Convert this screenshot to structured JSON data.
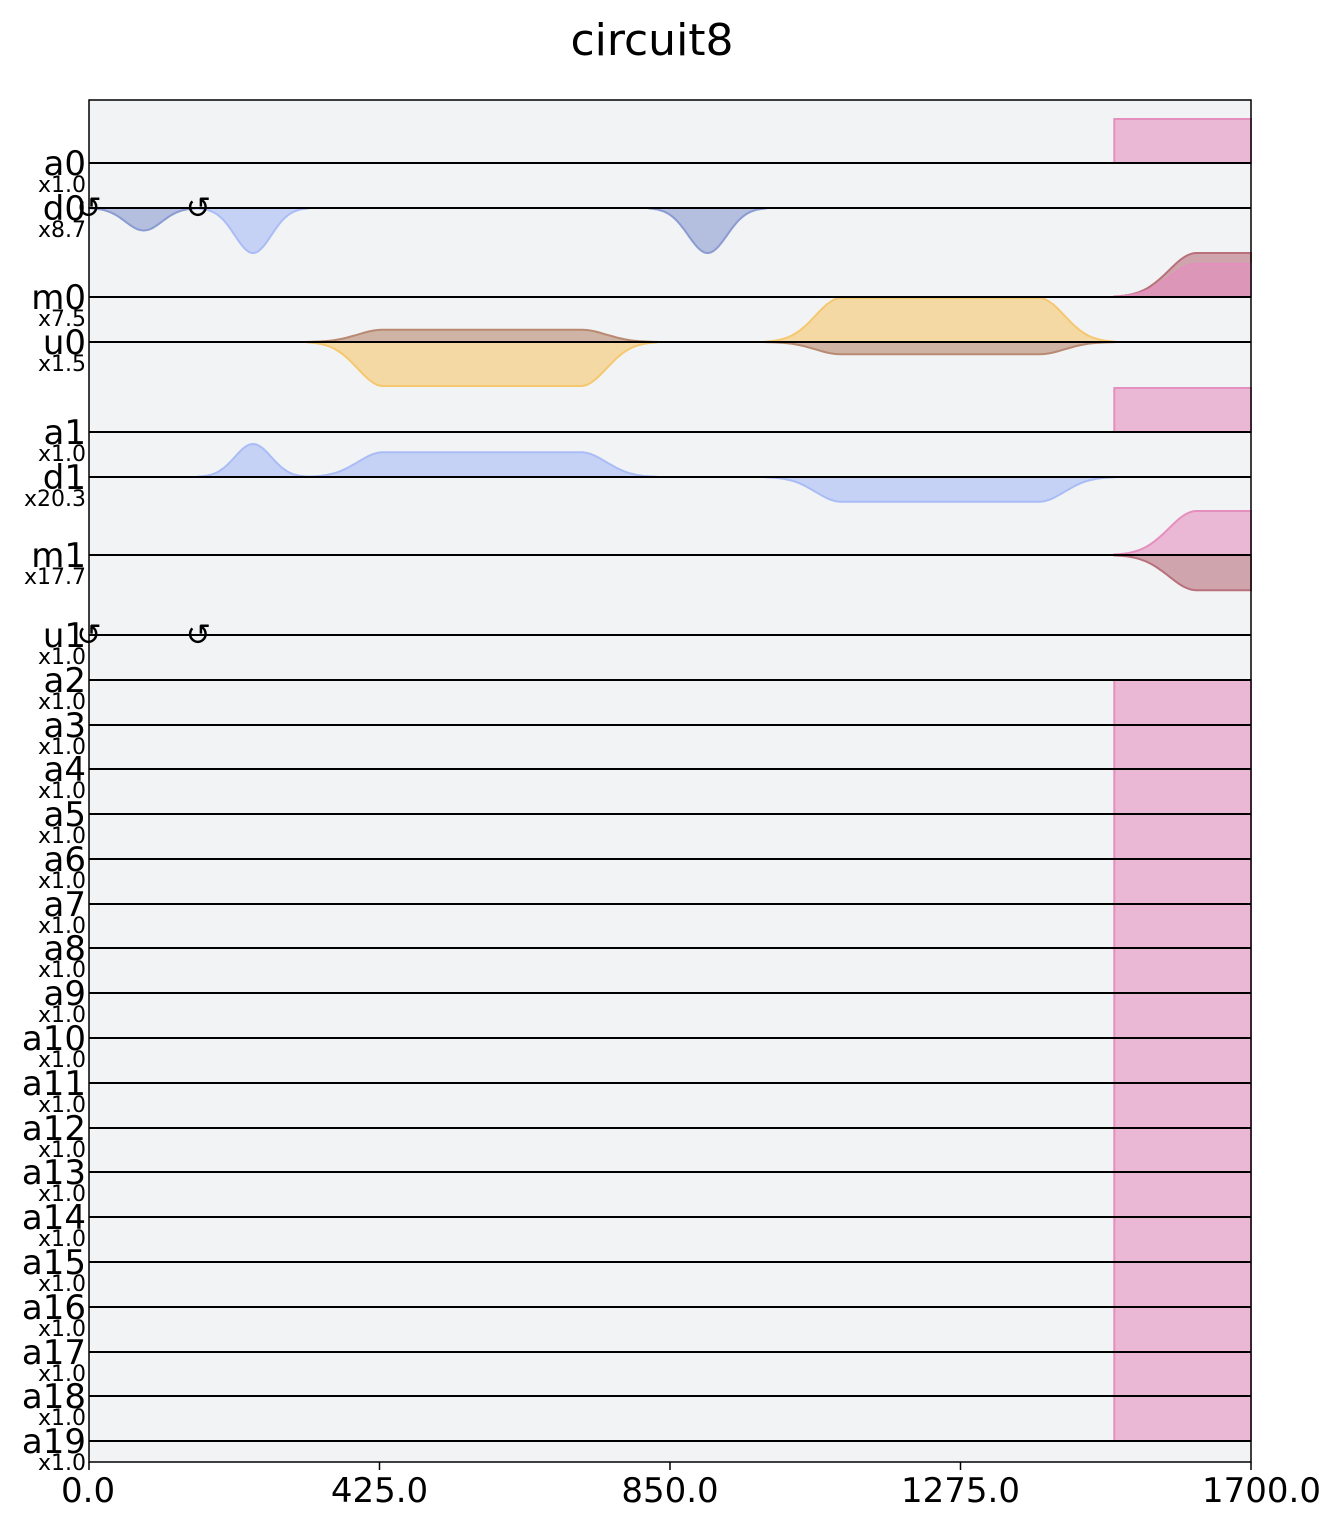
{
  "chart_data": {
    "type": "area",
    "title": "circuit8",
    "xlabel": "",
    "ylabel": "",
    "xlim": [
      0,
      1700
    ],
    "x_ticks": [
      "0.0",
      "425.0",
      "850.0",
      "1275.0",
      "1700.0"
    ],
    "x_tick_values": [
      0,
      425,
      850,
      1275,
      1700
    ],
    "grid": false,
    "legend": "none",
    "colors": {
      "background": "#f2f3f5",
      "drive_real": "#8a9bd1",
      "drive_imag": "#a9bcf5",
      "control_real": "#b88a72",
      "control_imag": "#f5c870",
      "measure_real": "#b8707c",
      "measure_imag": "#e58fbf",
      "acquire": "#e58fbf"
    },
    "channels": [
      {
        "name": "a0",
        "scale": "x1.0",
        "kind": "acquire"
      },
      {
        "name": "d0",
        "scale": "x8.7",
        "kind": "drive",
        "frame_change_icons": [
          "↺",
          "↺"
        ],
        "frame_change_times": [
          0,
          160
        ]
      },
      {
        "name": "m0",
        "scale": "x7.5",
        "kind": "measure"
      },
      {
        "name": "u0",
        "scale": "x1.5",
        "kind": "control"
      },
      {
        "name": "a1",
        "scale": "x1.0",
        "kind": "acquire"
      },
      {
        "name": "d1",
        "scale": "x20.3",
        "kind": "drive"
      },
      {
        "name": "m1",
        "scale": "x17.7",
        "kind": "measure"
      },
      {
        "name": "u1",
        "scale": "x1.0",
        "kind": "control",
        "frame_change_icons": [
          "↺",
          "↺"
        ],
        "frame_change_times": [
          0,
          160
        ]
      },
      {
        "name": "a2",
        "scale": "x1.0",
        "kind": "acquire"
      },
      {
        "name": "a3",
        "scale": "x1.0",
        "kind": "acquire"
      },
      {
        "name": "a4",
        "scale": "x1.0",
        "kind": "acquire"
      },
      {
        "name": "a5",
        "scale": "x1.0",
        "kind": "acquire"
      },
      {
        "name": "a6",
        "scale": "x1.0",
        "kind": "acquire"
      },
      {
        "name": "a7",
        "scale": "x1.0",
        "kind": "acquire"
      },
      {
        "name": "a8",
        "scale": "x1.0",
        "kind": "acquire"
      },
      {
        "name": "a9",
        "scale": "x1.0",
        "kind": "acquire"
      },
      {
        "name": "a10",
        "scale": "x1.0",
        "kind": "acquire"
      },
      {
        "name": "a11",
        "scale": "x1.0",
        "kind": "acquire"
      },
      {
        "name": "a12",
        "scale": "x1.0",
        "kind": "acquire"
      },
      {
        "name": "a13",
        "scale": "x1.0",
        "kind": "acquire"
      },
      {
        "name": "a14",
        "scale": "x1.0",
        "kind": "acquire"
      },
      {
        "name": "a15",
        "scale": "x1.0",
        "kind": "acquire"
      },
      {
        "name": "a16",
        "scale": "x1.0",
        "kind": "acquire"
      },
      {
        "name": "a17",
        "scale": "x1.0",
        "kind": "acquire"
      },
      {
        "name": "a18",
        "scale": "x1.0",
        "kind": "acquire"
      },
      {
        "name": "a19",
        "scale": "x1.0",
        "kind": "acquire"
      }
    ],
    "acquire_window": {
      "start": 1500,
      "end": 1700
    },
    "pulses": [
      {
        "channel": "d0",
        "component": "real",
        "shape": "gaussian",
        "start": 0,
        "end": 160,
        "amplitude": -0.5
      },
      {
        "channel": "d0",
        "component": "imag",
        "shape": "gaussian",
        "start": 160,
        "end": 320,
        "amplitude": -1.0
      },
      {
        "channel": "d0",
        "component": "real",
        "shape": "gaussian",
        "start": 820,
        "end": 990,
        "amplitude": -1.0
      },
      {
        "channel": "u0",
        "component": "real",
        "shape": "gaussian_square",
        "start": 320,
        "end": 830,
        "flat_start": 430,
        "flat_end": 720,
        "amplitude": 0.28
      },
      {
        "channel": "u0",
        "component": "imag",
        "shape": "gaussian_square",
        "start": 320,
        "end": 830,
        "flat_start": 430,
        "flat_end": 720,
        "amplitude": -1.0
      },
      {
        "channel": "u0",
        "component": "imag",
        "shape": "gaussian_square",
        "start": 990,
        "end": 1500,
        "flat_start": 1100,
        "flat_end": 1390,
        "amplitude": 1.0
      },
      {
        "channel": "u0",
        "component": "real",
        "shape": "gaussian_square",
        "start": 990,
        "end": 1500,
        "flat_start": 1100,
        "flat_end": 1390,
        "amplitude": -0.28
      },
      {
        "channel": "d1",
        "component": "imag",
        "shape": "gaussian",
        "start": 160,
        "end": 320,
        "amplitude": 1.0
      },
      {
        "channel": "d1",
        "component": "imag",
        "shape": "gaussian_square",
        "start": 320,
        "end": 830,
        "flat_start": 430,
        "flat_end": 720,
        "amplitude": 0.75
      },
      {
        "channel": "d1",
        "component": "imag",
        "shape": "gaussian_square",
        "start": 990,
        "end": 1500,
        "flat_start": 1100,
        "flat_end": 1390,
        "amplitude": -0.75
      },
      {
        "channel": "m0",
        "component": "real",
        "shape": "gaussian_square",
        "start": 1500,
        "end": 1800,
        "flat_start": 1620,
        "flat_end": 1800,
        "amplitude": 1.0
      },
      {
        "channel": "m0",
        "component": "imag",
        "shape": "gaussian_square",
        "start": 1500,
        "end": 1800,
        "flat_start": 1620,
        "flat_end": 1800,
        "amplitude": 0.75
      },
      {
        "channel": "m1",
        "component": "imag",
        "shape": "gaussian_square",
        "start": 1500,
        "end": 1800,
        "flat_start": 1620,
        "flat_end": 1800,
        "amplitude": 1.0
      },
      {
        "channel": "m1",
        "component": "real",
        "shape": "gaussian_square",
        "start": 1500,
        "end": 1800,
        "flat_start": 1620,
        "flat_end": 1800,
        "amplitude": -0.8
      }
    ]
  }
}
